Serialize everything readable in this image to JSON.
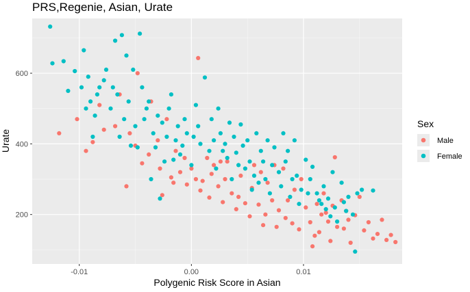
{
  "chart_data": {
    "type": "scatter",
    "title": "PRS,Regenie, Asian, Urate",
    "xlabel": "Polygenic Risk Score in Asian",
    "ylabel": "Urate",
    "xlim": [
      -0.0142,
      0.0188
    ],
    "ylim": [
      60,
      755
    ],
    "x_ticks": [
      -0.01,
      0.0,
      0.01
    ],
    "x_tick_labels": [
      "-0.01",
      "0.00",
      "0.01"
    ],
    "y_ticks": [
      200,
      400,
      600
    ],
    "y_tick_labels": [
      "200",
      "400",
      "600"
    ],
    "grid": true,
    "legend": {
      "title": "Sex",
      "position": "right",
      "entries": [
        {
          "label": "Male",
          "color": "#F8766D"
        },
        {
          "label": "Female",
          "color": "#00BFC4"
        }
      ]
    },
    "series": [
      {
        "name": "Male",
        "color": "#F8766D",
        "points": [
          [
            -0.0118,
            430
          ],
          [
            -0.0102,
            470
          ],
          [
            -0.0088,
            405
          ],
          [
            -0.0078,
            440
          ],
          [
            -0.0064,
            540
          ],
          [
            -0.0055,
            430
          ],
          [
            -0.0048,
            600
          ],
          [
            -0.0036,
            520
          ],
          [
            -0.003,
            410
          ],
          [
            -0.0022,
            470
          ],
          [
            -0.0014,
            380
          ],
          [
            -0.0006,
            360
          ],
          [
            0.0,
            330
          ],
          [
            0.0004,
            300
          ],
          [
            0.0006,
            643
          ],
          [
            0.001,
            295
          ],
          [
            0.0018,
            315
          ],
          [
            0.0024,
            280
          ],
          [
            0.003,
            300
          ],
          [
            0.0036,
            260
          ],
          [
            0.0042,
            250
          ],
          [
            0.0048,
            232
          ],
          [
            0.0054,
            275
          ],
          [
            0.006,
            228
          ],
          [
            0.0066,
            200
          ],
          [
            0.0072,
            240
          ],
          [
            0.0078,
            212
          ],
          [
            0.0084,
            190
          ],
          [
            0.009,
            175
          ],
          [
            0.0096,
            158
          ],
          [
            0.0102,
            220
          ],
          [
            0.0106,
            178
          ],
          [
            0.011,
            140
          ],
          [
            0.0114,
            150
          ],
          [
            0.012,
            205
          ],
          [
            0.0124,
            125
          ],
          [
            0.013,
            165
          ],
          [
            0.0134,
            240
          ],
          [
            0.0138,
            210
          ],
          [
            0.0142,
            120
          ],
          [
            0.0146,
            198
          ],
          [
            0.015,
            250
          ],
          [
            0.0154,
            155
          ],
          [
            0.0158,
            178
          ],
          [
            0.0162,
            132
          ],
          [
            0.0166,
            145
          ],
          [
            0.017,
            185
          ],
          [
            0.0174,
            128
          ],
          [
            0.0178,
            142
          ],
          [
            0.0182,
            122
          ],
          [
            0.0118,
            260
          ],
          [
            0.0128,
            362
          ],
          [
            0.0092,
            270
          ],
          [
            0.0082,
            330
          ],
          [
            0.0068,
            290
          ],
          [
            0.0056,
            340
          ],
          [
            0.0044,
            310
          ],
          [
            0.0032,
            350
          ],
          [
            0.002,
            340
          ],
          [
            -0.0044,
            345
          ],
          [
            -0.0058,
            280
          ],
          [
            -0.0026,
            255
          ],
          [
            -0.0016,
            290
          ],
          [
            -0.001,
            320
          ],
          [
            0.0014,
            360
          ],
          [
            0.0026,
            350
          ],
          [
            0.0062,
            320
          ],
          [
            0.0074,
            340
          ],
          [
            0.0098,
            300
          ],
          [
            0.0112,
            230
          ],
          [
            0.0122,
            180
          ],
          [
            0.0136,
            160
          ],
          [
            0.014,
            185
          ],
          [
            0.0108,
            110
          ],
          [
            0.0116,
            200
          ],
          [
            0.0126,
            225
          ],
          [
            0.0086,
            240
          ],
          [
            0.0076,
            165
          ],
          [
            0.0064,
            170
          ],
          [
            0.0052,
            195
          ],
          [
            0.004,
            215
          ],
          [
            0.0028,
            235
          ],
          [
            0.0016,
            248
          ],
          [
            0.0008,
            268
          ],
          [
            -0.0004,
            285
          ],
          [
            -0.0018,
            305
          ],
          [
            -0.0028,
            330
          ],
          [
            -0.0038,
            370
          ],
          [
            -0.005,
            395
          ],
          [
            -0.0068,
            450
          ],
          [
            -0.0082,
            510
          ],
          [
            -0.0094,
            380
          ]
        ]
      },
      {
        "name": "Female",
        "color": "#00BFC4",
        "points": [
          [
            -0.0126,
            732
          ],
          [
            -0.0124,
            628
          ],
          [
            -0.0114,
            634
          ],
          [
            -0.011,
            550
          ],
          [
            -0.0104,
            606
          ],
          [
            -0.0098,
            560
          ],
          [
            -0.0096,
            665
          ],
          [
            -0.0092,
            590
          ],
          [
            -0.009,
            520
          ],
          [
            -0.0086,
            480
          ],
          [
            -0.0082,
            560
          ],
          [
            -0.0076,
            610
          ],
          [
            -0.0072,
            500
          ],
          [
            -0.0068,
            692
          ],
          [
            -0.0066,
            540
          ],
          [
            -0.0062,
            708
          ],
          [
            -0.006,
            470
          ],
          [
            -0.0056,
            520
          ],
          [
            -0.005,
            450
          ],
          [
            -0.0046,
            712
          ],
          [
            -0.0044,
            560
          ],
          [
            -0.004,
            500
          ],
          [
            -0.0034,
            430
          ],
          [
            -0.003,
            480
          ],
          [
            -0.0026,
            460
          ],
          [
            -0.0022,
            420
          ],
          [
            -0.0018,
            540
          ],
          [
            -0.0012,
            450
          ],
          [
            -0.0008,
            395
          ],
          [
            -0.0004,
            430
          ],
          [
            0.0002,
            420
          ],
          [
            0.0008,
            400
          ],
          [
            0.0012,
            588
          ],
          [
            0.0016,
            380
          ],
          [
            0.002,
            410
          ],
          [
            0.0024,
            500
          ],
          [
            0.0028,
            380
          ],
          [
            0.0032,
            360
          ],
          [
            0.0038,
            420
          ],
          [
            0.0042,
            340
          ],
          [
            0.0046,
            395
          ],
          [
            0.0052,
            350
          ],
          [
            0.0056,
            310
          ],
          [
            0.0062,
            380
          ],
          [
            0.0066,
            300
          ],
          [
            0.0072,
            340
          ],
          [
            0.0078,
            320
          ],
          [
            0.0082,
            430
          ],
          [
            0.0086,
            380
          ],
          [
            0.009,
            300
          ],
          [
            0.0094,
            310
          ],
          [
            0.0098,
            270
          ],
          [
            0.0102,
            355
          ],
          [
            0.0108,
            335
          ],
          [
            0.0112,
            260
          ],
          [
            0.0116,
            230
          ],
          [
            0.012,
            215
          ],
          [
            0.0124,
            195
          ],
          [
            0.013,
            180
          ],
          [
            0.0134,
            290
          ],
          [
            0.014,
            250
          ],
          [
            0.0148,
            260
          ],
          [
            0.0152,
            270
          ],
          [
            0.0162,
            268
          ],
          [
            0.0146,
            95
          ],
          [
            -0.0054,
            395
          ],
          [
            -0.0036,
            300
          ],
          [
            -0.0028,
            245
          ],
          [
            -0.0016,
            355
          ],
          [
            -0.0006,
            470
          ],
          [
            0.0004,
            510
          ],
          [
            0.0018,
            470
          ],
          [
            0.0034,
            460
          ],
          [
            0.0044,
            455
          ],
          [
            0.0058,
            430
          ],
          [
            0.0068,
            410
          ],
          [
            0.0074,
            390
          ],
          [
            0.0092,
            410
          ],
          [
            0.0106,
            300
          ],
          [
            0.0118,
            280
          ],
          [
            0.0126,
            320
          ],
          [
            0.0138,
            210
          ],
          [
            0.0144,
            200
          ],
          [
            -0.007,
            560
          ],
          [
            -0.0064,
            420
          ],
          [
            -0.0052,
            610
          ],
          [
            -0.0042,
            470
          ],
          [
            -0.0032,
            390
          ],
          [
            -0.0024,
            350
          ],
          [
            -0.002,
            500
          ],
          [
            -0.0014,
            410
          ],
          [
            -0.001,
            370
          ],
          [
            0.0,
            340
          ],
          [
            0.0006,
            450
          ],
          [
            0.0022,
            330
          ],
          [
            0.003,
            400
          ],
          [
            0.0036,
            300
          ],
          [
            0.0048,
            330
          ],
          [
            0.0054,
            270
          ],
          [
            0.0064,
            350
          ],
          [
            0.008,
            280
          ],
          [
            0.0088,
            250
          ],
          [
            0.0096,
            230
          ],
          [
            -0.0078,
            580
          ],
          [
            -0.0084,
            540
          ],
          [
            -0.0088,
            420
          ],
          [
            -0.0094,
            500
          ],
          [
            -0.0058,
            650
          ],
          [
            -0.0048,
            390
          ],
          [
            -0.0038,
            520
          ],
          [
            0.0026,
            430
          ],
          [
            0.004,
            375
          ],
          [
            0.005,
            410
          ],
          [
            0.006,
            290
          ],
          [
            0.007,
            260
          ],
          [
            0.0084,
            350
          ],
          [
            0.0104,
            260
          ],
          [
            0.0114,
            240
          ],
          [
            0.0122,
            245
          ],
          [
            0.0128,
            220
          ],
          [
            0.0136,
            235
          ]
        ]
      }
    ]
  }
}
